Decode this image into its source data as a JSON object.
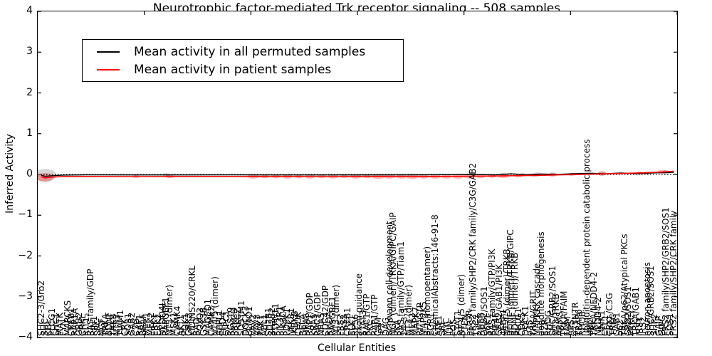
{
  "title": "Neurotrophic factor-mediated Trk receptor signaling -- 508 samples",
  "legend": {
    "items": [
      {
        "label": "Mean activity in all permuted samples",
        "color": "#000000"
      },
      {
        "label": "Mean activity in patient samples",
        "color": "#ff0000"
      }
    ]
  },
  "axes": {
    "xlabel": "Cellular Entities",
    "ylabel": "Inferred Activity",
    "yticks": [
      "4",
      "3",
      "2",
      "1",
      "0",
      "−1",
      "−2",
      "−3",
      "−4"
    ],
    "ylim": [
      -4,
      4
    ],
    "x_major_tick_count": 6,
    "grid": false,
    "zero_line": "dotted"
  },
  "chart_data": {
    "type": "line",
    "title": "Neurotrophic factor-mediated Trk receptor signaling -- 508 samples",
    "xlabel": "Cellular Entities",
    "ylabel": "Inferred Activity",
    "ylim": [
      -4,
      4
    ],
    "legend_position": "upper left",
    "categories": [
      "SHC2-3/Grb2",
      "SHC",
      "CBL",
      "PLCG1",
      "SHC1",
      "MATK",
      "FYN",
      "MARCKS",
      "CREB1",
      "RAP1A",
      "GRB2",
      "CRKL",
      "RIT1",
      "RAS family/GDP",
      "RIN1",
      "SRC",
      "NGF",
      "TRKA",
      "BDNF",
      "TRKB",
      "NTF3",
      "TIAM1",
      "CRK",
      "SOS1",
      "GAB2",
      "C3G",
      "RAF1",
      "BRAF",
      "MEK1",
      "MEK2",
      "ERK1",
      "ERK2",
      "NEDD4L",
      "RAPGEF1",
      "NT3 (dimer)",
      "MSK1",
      "CAMK4",
      "AKT1",
      "PDK1",
      "GRK2",
      "KIDINS220/CRKL",
      "BAD",
      "FOXO3",
      "GSK3B",
      "MAGED1",
      "CAMK2",
      "NT4/5 (dimer)",
      "APPL1",
      "EHD4",
      "GIPC1",
      "RGS19",
      "PRKCD",
      "PRKCZ",
      "SQSTM1",
      "DOCK3",
      "ELMO1",
      "VAV2",
      "VAV3",
      "PAK1",
      "ABL1",
      "SH2B1",
      "SH2B2",
      "PTPN11",
      "PIK3R1",
      "PIK3CA",
      "PDPK1",
      "NFKB1",
      "IKBKB",
      "CHUK",
      "RELA",
      "HRAS",
      "RAP1/GDP",
      "KRAS",
      "RAC1/GDP",
      "NRAS",
      "CDC42/GDP",
      "RHOA",
      "RASGRF1",
      "NT3 (dimer)",
      "FRS2",
      "FRS3",
      "CREB1",
      "ELK1",
      "RPS6",
      "axon guidance",
      "STAT3",
      "RAC1/GTP",
      "PKC",
      "RAP1/GTP",
      "CaM",
      "IP3",
      "DAG",
      "Schwann cell development",
      "NGF (dimer)/TRKA/GIPC/GAIP",
      "PKA",
      "RAS family/GTP/Tiam1",
      "14-3-3",
      "NT3 (dimer)",
      "MEF2",
      "MAPK7",
      "RIT/GTP",
      "MAP2K5",
      "B-1 (homopentamer)",
      "EGR1",
      "ChemicalAbstracts:146-91-8",
      "ATF1",
      "SRF",
      "MYC",
      "JUN",
      "FOS",
      "STAT1",
      "NT-4/5 (dimer)",
      "PTEN",
      "mTOR",
      "FRS2 family/SHP2/CRK family/C3G/GAB2",
      "TSC2",
      "RHEB",
      "GRB2/SOS1",
      "S6K1",
      "RAS family/GTP/PI3K",
      "EIF4E",
      "GRB2/GAB1/PI3K",
      "4EBP1",
      "NT-4/5 (dimer)/TRKB",
      "BDNF (dimer)/TRKB/GIPC",
      "BDNF (dimer)/TRKB",
      "PLCG1",
      "CDK5",
      "DOCK1",
      "p35",
      "TRKA/GRIT",
      "MAPKKK cascade",
      "dendrite morphogenesis",
      "EZR",
      "RHOG",
      "SHC/GRB2/SOS1",
      "NT3/TRKB",
      "ARMS",
      "TRKA/FAIM",
      "FAIM",
      "APS",
      "p75NTR",
      "TRAF6",
      "RHOB",
      "ubiquitin-dependent protein catabolic process",
      "UBC",
      "TRKA/NEDD4-2",
      "NEDD4-2",
      "LIMK1",
      "CFL1",
      "CRKL/C3G",
      "TRKC",
      "GAB1",
      "p62",
      "TRKA/p62/Atypical PKCs",
      "GRB2/SOS1",
      "PRKCI",
      "TRKA/GAB1",
      "IRS1",
      "IRS2",
      "neuron apoptosis",
      "SHC/GRB2/SOS1",
      "SHP2",
      "GAIP",
      "GIPC",
      "FRS2 family/SHP2/GRB2/SOS1",
      "SOS1",
      "FRS2 family/SHP2/CRK family"
    ],
    "series": [
      {
        "name": "Mean activity in all permuted samples",
        "color": "#000000",
        "points": [
          [
            0,
            -0.02
          ],
          [
            1,
            -0.045
          ],
          [
            3,
            -0.03
          ],
          [
            6,
            -0.015
          ],
          [
            12,
            -0.01
          ],
          [
            25,
            -0.012
          ],
          [
            50,
            -0.01
          ],
          [
            75,
            -0.012
          ],
          [
            100,
            -0.008
          ],
          [
            108,
            -0.005
          ],
          [
            114,
            0.0
          ],
          [
            120,
            -0.01
          ],
          [
            124,
            0.015
          ],
          [
            128,
            -0.005
          ],
          [
            132,
            0.01
          ],
          [
            136,
            0.0
          ],
          [
            140,
            0.015
          ],
          [
            145,
            0.03
          ],
          [
            149,
            0.015
          ],
          [
            153,
            0.035
          ],
          [
            157,
            0.02
          ],
          [
            161,
            0.035
          ],
          [
            164,
            0.045
          ],
          [
            167,
            0.05
          ]
        ]
      },
      {
        "name": "Mean activity in patient samples",
        "color": "#ff0000",
        "points": [
          [
            0,
            -0.055
          ],
          [
            1,
            -0.085
          ],
          [
            3,
            -0.065
          ],
          [
            6,
            -0.05
          ],
          [
            12,
            -0.05
          ],
          [
            25,
            -0.052
          ],
          [
            50,
            -0.05
          ],
          [
            75,
            -0.053
          ],
          [
            100,
            -0.05
          ],
          [
            108,
            -0.047
          ],
          [
            114,
            -0.043
          ],
          [
            120,
            -0.038
          ],
          [
            126,
            -0.03
          ],
          [
            131,
            -0.022
          ],
          [
            136,
            -0.012
          ],
          [
            141,
            -0.002
          ],
          [
            146,
            0.01
          ],
          [
            151,
            0.02
          ],
          [
            156,
            0.032
          ],
          [
            160,
            0.042
          ],
          [
            164,
            0.06
          ],
          [
            167,
            0.08
          ]
        ]
      }
    ],
    "markers": {
      "patient": {
        "color": "#ff0000",
        "opacity": 0.3,
        "points": [
          [
            1,
            -0.07,
            12,
            6
          ],
          [
            25,
            -0.05,
            5,
            2
          ],
          [
            34,
            -0.05,
            6,
            2.5
          ],
          [
            56,
            -0.05,
            8,
            3
          ],
          [
            59,
            -0.05,
            6,
            2.5
          ],
          [
            62,
            -0.05,
            6,
            2.5
          ],
          [
            65,
            -0.05,
            7,
            3
          ],
          [
            68,
            -0.05,
            6,
            2.5
          ],
          [
            71,
            -0.05,
            7,
            3
          ],
          [
            74,
            -0.05,
            6,
            2.5
          ],
          [
            77,
            -0.05,
            7,
            3
          ],
          [
            80,
            -0.05,
            6,
            2
          ],
          [
            83,
            -0.05,
            8,
            3
          ],
          [
            86,
            -0.05,
            6,
            2.5
          ],
          [
            89,
            -0.05,
            9,
            3.5
          ],
          [
            92,
            -0.05,
            8,
            3
          ],
          [
            95,
            -0.05,
            7,
            3
          ],
          [
            98,
            -0.05,
            9,
            3.5
          ],
          [
            101,
            -0.05,
            7,
            3
          ],
          [
            104,
            -0.05,
            8,
            3
          ],
          [
            107,
            -0.05,
            7,
            3
          ],
          [
            110,
            -0.045,
            8,
            3.5
          ],
          [
            113,
            -0.04,
            9,
            3.5
          ],
          [
            116,
            -0.04,
            7,
            3
          ],
          [
            119,
            -0.04,
            6,
            2.5
          ],
          [
            122,
            -0.035,
            8,
            3
          ],
          [
            126,
            -0.03,
            6,
            2.5
          ],
          [
            130,
            -0.02,
            5,
            2
          ],
          [
            135,
            -0.01,
            6,
            2.5
          ],
          [
            140,
            0.0,
            5,
            2
          ],
          [
            148,
            0.02,
            6,
            2.5
          ],
          [
            158,
            0.035,
            5,
            2
          ],
          [
            164,
            0.06,
            7,
            3
          ]
        ]
      },
      "permuted": {
        "color": "#999999",
        "opacity": 0.4,
        "points": [
          [
            1,
            -0.02,
            16,
            9
          ],
          [
            33,
            -0.01,
            5,
            2.5
          ],
          [
            122,
            0.0,
            5,
            2.5
          ],
          [
            127,
            0.0,
            4,
            2
          ],
          [
            131,
            0.0,
            6,
            3
          ],
          [
            135,
            0.01,
            5,
            2.5
          ],
          [
            148,
            0.025,
            6,
            3.5
          ],
          [
            160,
            0.03,
            5,
            2.5
          ],
          [
            165,
            0.045,
            6,
            3.5
          ]
        ]
      }
    }
  }
}
